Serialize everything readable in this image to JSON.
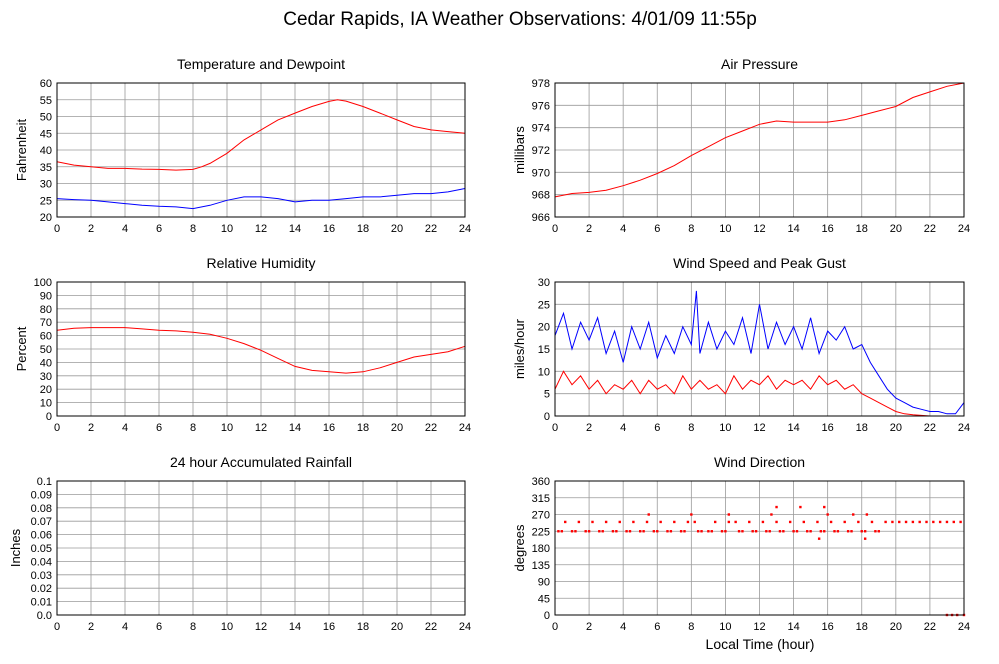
{
  "title": "Cedar Rapids, IA Weather Observations: 4/01/09 11:55p",
  "x_axis_label": "Local Time (hour)",
  "colors": {
    "red": "#ff0000",
    "blue": "#0000ff"
  },
  "chart_data": [
    {
      "id": "temp",
      "type": "line",
      "title": "Temperature and Dewpoint",
      "ylabel": "Fahrenheit",
      "xlim": [
        0,
        24
      ],
      "ylim": [
        20,
        60
      ],
      "x_ticks": [
        "0",
        "2",
        "4",
        "6",
        "8",
        "10",
        "12",
        "14",
        "16",
        "18",
        "20",
        "22",
        "24"
      ],
      "y_ticks": [
        "20",
        "25",
        "30",
        "35",
        "40",
        "45",
        "50",
        "55",
        "60"
      ],
      "grid": true,
      "series": [
        {
          "color": "#ff0000",
          "x": [
            0,
            1,
            2,
            3,
            4,
            5,
            6,
            7,
            8,
            8.5,
            9,
            10,
            11,
            12,
            13,
            14,
            15,
            16,
            16.5,
            17,
            18,
            19,
            20,
            21,
            22,
            23,
            24
          ],
          "values": [
            36.5,
            35.5,
            35,
            34.5,
            34.5,
            34.3,
            34.2,
            34,
            34.2,
            35,
            36,
            39,
            43,
            46,
            49,
            51,
            53,
            54.5,
            55,
            54.6,
            53,
            51,
            49,
            47,
            46,
            45.5,
            45
          ]
        },
        {
          "color": "#0000ff",
          "x": [
            0,
            1,
            2,
            3,
            4,
            5,
            6,
            7,
            8,
            9,
            10,
            11,
            12,
            13,
            14,
            15,
            16,
            17,
            18,
            19,
            20,
            21,
            22,
            23,
            24
          ],
          "values": [
            25.5,
            25.2,
            25,
            24.5,
            24,
            23.5,
            23.2,
            23,
            22.5,
            23.5,
            25,
            26,
            26,
            25.5,
            24.5,
            25,
            25,
            25.5,
            26,
            26,
            26.5,
            27,
            27,
            27.5,
            28.5
          ]
        }
      ]
    },
    {
      "id": "pressure",
      "type": "line",
      "title": "Air Pressure",
      "ylabel": "millibars",
      "xlim": [
        0,
        24
      ],
      "ylim": [
        966,
        978
      ],
      "x_ticks": [
        "0",
        "2",
        "4",
        "6",
        "8",
        "10",
        "12",
        "14",
        "16",
        "18",
        "20",
        "22",
        "24"
      ],
      "y_ticks": [
        "966",
        "968",
        "970",
        "972",
        "974",
        "976",
        "978"
      ],
      "grid": true,
      "series": [
        {
          "color": "#ff0000",
          "x": [
            0,
            1,
            2,
            3,
            4,
            5,
            6,
            7,
            8,
            9,
            10,
            11,
            12,
            13,
            14,
            15,
            16,
            17,
            18,
            19,
            20,
            21,
            22,
            23,
            24
          ],
          "values": [
            967.8,
            968.1,
            968.2,
            968.4,
            968.8,
            969.3,
            969.9,
            970.6,
            971.5,
            972.3,
            973.1,
            973.7,
            974.3,
            974.6,
            974.5,
            974.5,
            974.5,
            974.7,
            975.1,
            975.5,
            975.9,
            976.7,
            977.2,
            977.7,
            978.0
          ]
        }
      ]
    },
    {
      "id": "humidity",
      "type": "line",
      "title": "Relative Humidity",
      "ylabel": "Percent",
      "xlim": [
        0,
        24
      ],
      "ylim": [
        0,
        100
      ],
      "x_ticks": [
        "0",
        "2",
        "4",
        "6",
        "8",
        "10",
        "12",
        "14",
        "16",
        "18",
        "20",
        "22",
        "24"
      ],
      "y_ticks": [
        "0",
        "10",
        "20",
        "30",
        "40",
        "50",
        "60",
        "70",
        "80",
        "90",
        "100"
      ],
      "grid": true,
      "series": [
        {
          "color": "#ff0000",
          "x": [
            0,
            1,
            2,
            3,
            4,
            5,
            6,
            7,
            8,
            9,
            10,
            11,
            12,
            13,
            14,
            15,
            16,
            17,
            18,
            19,
            20,
            21,
            22,
            23,
            24
          ],
          "values": [
            64,
            65.5,
            66,
            66,
            66,
            65,
            64,
            63.5,
            62.5,
            61,
            58,
            54,
            49,
            43,
            37,
            34,
            33,
            32,
            33,
            36,
            40,
            44,
            46,
            48,
            52
          ]
        }
      ]
    },
    {
      "id": "wind",
      "type": "line",
      "title": "Wind Speed and Peak Gust",
      "ylabel": "miles/hour",
      "xlim": [
        0,
        24
      ],
      "ylim": [
        0,
        30
      ],
      "x_ticks": [
        "0",
        "2",
        "4",
        "6",
        "8",
        "10",
        "12",
        "14",
        "16",
        "18",
        "20",
        "22",
        "24"
      ],
      "y_ticks": [
        "0",
        "5",
        "10",
        "15",
        "20",
        "25",
        "30"
      ],
      "grid": true,
      "series": [
        {
          "color": "#0000ff",
          "x": [
            0,
            0.5,
            1,
            1.5,
            2,
            2.5,
            3,
            3.5,
            4,
            4.5,
            5,
            5.5,
            6,
            6.5,
            7,
            7.5,
            8,
            8.3,
            8.5,
            9,
            9.5,
            10,
            10.5,
            11,
            11.5,
            12,
            12.5,
            13,
            13.5,
            14,
            14.5,
            15,
            15.5,
            16,
            16.5,
            17,
            17.5,
            18,
            18.5,
            19,
            19.5,
            20,
            20.5,
            21,
            21.5,
            22,
            22.5,
            23,
            23.5,
            24
          ],
          "values": [
            18,
            23,
            15,
            21,
            17,
            22,
            14,
            19,
            12,
            20,
            15,
            21,
            13,
            18,
            14,
            20,
            16,
            28,
            14,
            21,
            15,
            19,
            16,
            22,
            14,
            25,
            15,
            21,
            16,
            20,
            15,
            22,
            14,
            19,
            17,
            20,
            15,
            16,
            12,
            9,
            6,
            4,
            3,
            2,
            1.5,
            1,
            1,
            0.5,
            0.5,
            3
          ]
        },
        {
          "color": "#ff0000",
          "x": [
            0,
            0.5,
            1,
            1.5,
            2,
            2.5,
            3,
            3.5,
            4,
            4.5,
            5,
            5.5,
            6,
            6.5,
            7,
            7.5,
            8,
            8.5,
            9,
            9.5,
            10,
            10.5,
            11,
            11.5,
            12,
            12.5,
            13,
            13.5,
            14,
            14.5,
            15,
            15.5,
            16,
            16.5,
            17,
            17.5,
            18,
            18.5,
            19,
            19.5,
            20,
            20.5,
            21,
            22,
            23,
            24
          ],
          "values": [
            6,
            10,
            7,
            9,
            6,
            8,
            5,
            7,
            6,
            8,
            5,
            8,
            6,
            7,
            5,
            9,
            6,
            8,
            6,
            7,
            5,
            9,
            6,
            8,
            7,
            9,
            6,
            8,
            7,
            8,
            6,
            9,
            7,
            8,
            6,
            7,
            5,
            4,
            3,
            2,
            1,
            0.5,
            0.3,
            0,
            0,
            0
          ]
        }
      ]
    },
    {
      "id": "rain",
      "type": "line",
      "title": "24 hour Accumulated Rainfall",
      "ylabel": "Inches",
      "xlim": [
        0,
        24
      ],
      "ylim": [
        0,
        0.1
      ],
      "x_ticks": [
        "0",
        "2",
        "4",
        "6",
        "8",
        "10",
        "12",
        "14",
        "16",
        "18",
        "20",
        "22",
        "24"
      ],
      "y_ticks": [
        "0.0",
        "0.01",
        "0.02",
        "0.03",
        "0.04",
        "0.05",
        "0.06",
        "0.07",
        "0.08",
        "0.09",
        "0.1"
      ],
      "grid": true,
      "series": [
        {
          "color": "#ff0000",
          "x": [
            0,
            24
          ],
          "values": [
            0,
            0
          ]
        }
      ]
    },
    {
      "id": "direction",
      "type": "scatter",
      "title": "Wind Direction",
      "ylabel": "degrees",
      "xlim": [
        0,
        24
      ],
      "ylim": [
        0,
        360
      ],
      "x_ticks": [
        "0",
        "2",
        "4",
        "6",
        "8",
        "10",
        "12",
        "14",
        "16",
        "18",
        "20",
        "22",
        "24"
      ],
      "y_ticks": [
        "0",
        "45",
        "90",
        "135",
        "180",
        "225",
        "270",
        "315",
        "360"
      ],
      "grid": true,
      "series": [
        {
          "color": "#ff0000",
          "x": [
            0.2,
            0.6,
            1.0,
            1.4,
            1.8,
            2.2,
            2.6,
            3.0,
            3.4,
            3.8,
            4.2,
            4.6,
            5.0,
            5.4,
            5.8,
            6.2,
            6.6,
            7.0,
            7.4,
            7.8,
            8.2,
            8.6,
            9.0,
            9.4,
            9.8,
            10.2,
            10.6,
            11.0,
            11.4,
            11.8,
            12.2,
            12.6,
            13.0,
            13.4,
            13.8,
            14.2,
            14.6,
            15.0,
            15.4,
            15.8,
            16.2,
            16.6,
            17.0,
            17.4,
            17.8,
            18.2,
            18.6,
            19.0,
            19.4,
            19.8,
            20.2,
            20.6,
            21.0,
            21.4,
            21.8,
            22.2,
            22.6,
            23.0,
            23.4,
            23.8,
            0.4,
            1.2,
            2.0,
            2.8,
            3.6,
            4.4,
            5.2,
            6.0,
            6.8,
            7.6,
            8.4,
            9.2,
            10.0,
            10.8,
            11.6,
            12.4,
            13.2,
            14.0,
            14.8,
            15.6,
            16.4,
            17.2,
            18.0,
            18.8,
            5.5,
            8.0,
            10.2,
            12.7,
            13.0,
            14.4,
            15.8,
            16.0,
            17.5,
            18.3,
            15.5,
            18.2,
            23.0,
            23.3,
            23.6,
            24.0
          ],
          "values": [
            225,
            250,
            225,
            250,
            225,
            250,
            225,
            250,
            225,
            250,
            225,
            250,
            225,
            250,
            225,
            250,
            225,
            250,
            225,
            250,
            250,
            225,
            225,
            250,
            225,
            250,
            250,
            225,
            250,
            225,
            250,
            225,
            250,
            225,
            250,
            225,
            250,
            225,
            250,
            225,
            250,
            225,
            250,
            225,
            250,
            225,
            250,
            225,
            250,
            250,
            250,
            250,
            250,
            250,
            250,
            250,
            250,
            250,
            250,
            250,
            225,
            225,
            225,
            225,
            225,
            225,
            225,
            225,
            225,
            225,
            225,
            225,
            225,
            225,
            225,
            225,
            225,
            225,
            225,
            225,
            225,
            225,
            225,
            225,
            270,
            270,
            270,
            270,
            290,
            290,
            290,
            270,
            270,
            270,
            205,
            205,
            0,
            0,
            0,
            0
          ]
        }
      ]
    }
  ]
}
